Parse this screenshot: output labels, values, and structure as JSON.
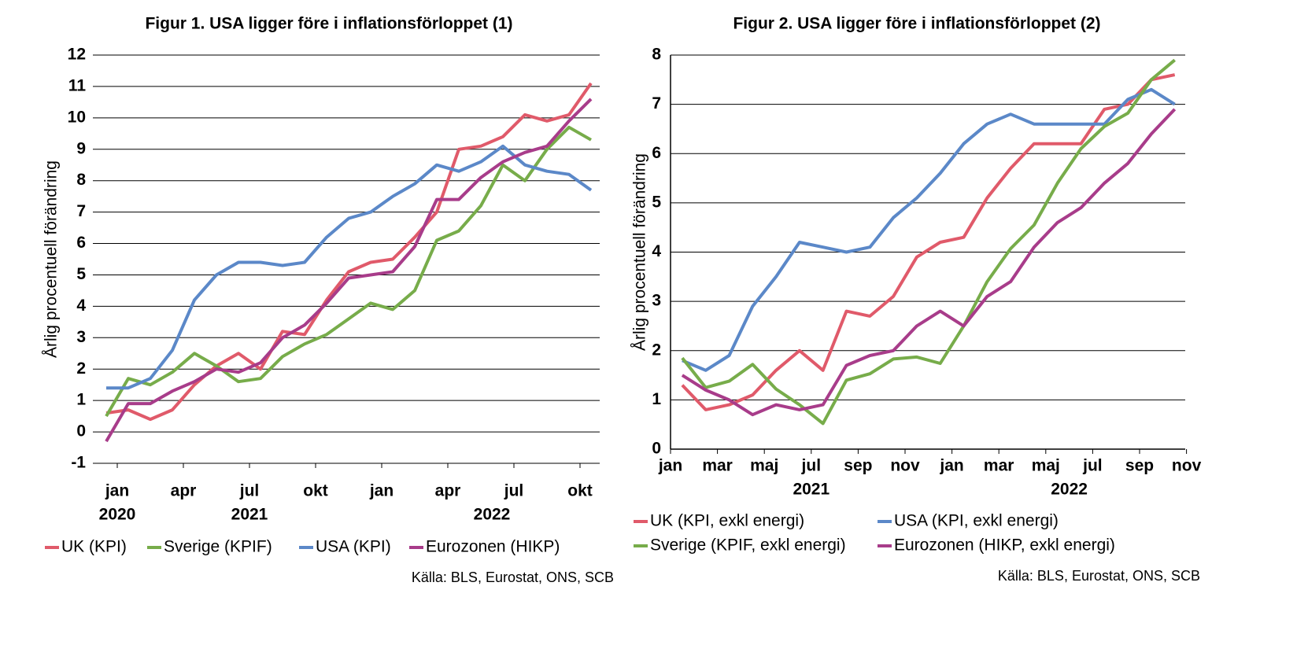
{
  "chart_data": [
    {
      "type": "line",
      "title": "Figur 1. USA ligger före i inflationsförloppet (1)",
      "y_label": "Årlig procentuell förändring",
      "source": "Källa: BLS, Eurostat, ONS, SCB",
      "categories": [
        "jan",
        null,
        null,
        "apr",
        null,
        null,
        "jul",
        null,
        null,
        "okt",
        null,
        null,
        "jan",
        null,
        null,
        "apr",
        null,
        null,
        "jul",
        null,
        null,
        "okt",
        null
      ],
      "year_labels": [
        "2020",
        null,
        null,
        null,
        null,
        null,
        "2021",
        null,
        null,
        null,
        null,
        null,
        null,
        null,
        null,
        null,
        null,
        "2022",
        null,
        null,
        null,
        null,
        null
      ],
      "ylim": [
        -1,
        12
      ],
      "yticks": [
        -1,
        0,
        1,
        2,
        3,
        4,
        5,
        6,
        7,
        8,
        9,
        10,
        11,
        12
      ],
      "grid": true,
      "series": [
        {
          "name": "UK (KPI)",
          "color": "#e05a6a",
          "values": [
            0.6,
            0.7,
            0.4,
            0.7,
            1.5,
            2.1,
            2.5,
            2.0,
            3.2,
            3.1,
            4.2,
            5.1,
            5.4,
            5.5,
            6.2,
            7.0,
            9.0,
            9.1,
            9.4,
            10.1,
            9.9,
            10.1,
            11.1
          ]
        },
        {
          "name": "Sverige (KPIF)",
          "color": "#77ac4a",
          "values": [
            0.5,
            1.7,
            1.5,
            1.9,
            2.5,
            2.1,
            1.6,
            1.7,
            2.4,
            2.8,
            3.1,
            3.6,
            4.1,
            3.9,
            4.5,
            6.1,
            6.4,
            7.2,
            8.5,
            8.0,
            9.0,
            9.7,
            9.3
          ]
        },
        {
          "name": "USA (KPI)",
          "color": "#5b88c8",
          "values": [
            1.4,
            1.4,
            1.7,
            2.6,
            4.2,
            5.0,
            5.4,
            5.4,
            5.3,
            5.4,
            6.2,
            6.8,
            7.0,
            7.5,
            7.9,
            8.5,
            8.3,
            8.6,
            9.1,
            8.5,
            8.3,
            8.2,
            7.7
          ]
        },
        {
          "name": "Eurozonen (HIKP)",
          "color": "#a83c8a",
          "values": [
            -0.3,
            0.9,
            0.9,
            1.3,
            1.6,
            2.0,
            1.9,
            2.2,
            3.0,
            3.4,
            4.1,
            4.9,
            5.0,
            5.1,
            5.9,
            7.4,
            7.4,
            8.1,
            8.6,
            8.9,
            9.1,
            9.9,
            10.6
          ]
        }
      ]
    },
    {
      "type": "line",
      "title": "Figur 2. USA ligger före i inflationsförloppet (2)",
      "y_label": "Årlig procentuell förändring",
      "source": "Källa: BLS, Eurostat, ONS, SCB",
      "categories": [
        "jan",
        null,
        "mar",
        null,
        "maj",
        null,
        "jul",
        null,
        "sep",
        null,
        "nov",
        null,
        "jan",
        null,
        "mar",
        null,
        "maj",
        null,
        "jul",
        null,
        "sep",
        null,
        "nov"
      ],
      "year_labels": [
        null,
        null,
        null,
        null,
        null,
        null,
        "2021",
        null,
        null,
        null,
        null,
        null,
        null,
        null,
        null,
        null,
        null,
        "2022",
        null,
        null,
        null,
        null,
        null
      ],
      "ylim": [
        0,
        8
      ],
      "yticks": [
        0,
        1,
        2,
        3,
        4,
        5,
        6,
        7,
        8
      ],
      "grid": true,
      "series": [
        {
          "name": "UK (KPI, exkl energi)",
          "color": "#e05a6a",
          "values": [
            1.3,
            0.8,
            0.9,
            1.1,
            1.6,
            2.0,
            1.6,
            2.8,
            2.7,
            3.1,
            3.9,
            4.2,
            4.3,
            5.1,
            5.7,
            6.2,
            6.2,
            6.2,
            6.9,
            7.0,
            7.5,
            7.6,
            null
          ]
        },
        {
          "name": "USA (KPI, exkl energi)",
          "color": "#5b88c8",
          "values": [
            1.8,
            1.6,
            1.9,
            2.9,
            3.5,
            4.2,
            4.1,
            4.0,
            4.1,
            4.7,
            5.1,
            5.6,
            6.2,
            6.6,
            6.8,
            6.6,
            6.6,
            6.6,
            6.6,
            7.1,
            7.3,
            7.0,
            null
          ]
        },
        {
          "name": "Sverige (KPIF, exkl energi)",
          "color": "#77ac4a",
          "values": [
            1.85,
            1.25,
            1.38,
            1.72,
            1.22,
            0.9,
            0.52,
            1.4,
            1.53,
            1.83,
            1.87,
            1.74,
            2.5,
            3.4,
            4.07,
            4.55,
            5.4,
            6.1,
            6.55,
            6.82,
            7.5,
            7.9,
            null
          ]
        },
        {
          "name": "Eurozonen (HIKP, exkl energi)",
          "color": "#a83c8a",
          "values": [
            1.5,
            1.2,
            1.0,
            0.7,
            0.9,
            0.8,
            0.9,
            1.7,
            1.9,
            2.0,
            2.5,
            2.8,
            2.5,
            3.1,
            3.4,
            4.1,
            4.6,
            4.9,
            5.4,
            5.8,
            6.4,
            6.9,
            null
          ]
        }
      ]
    }
  ]
}
